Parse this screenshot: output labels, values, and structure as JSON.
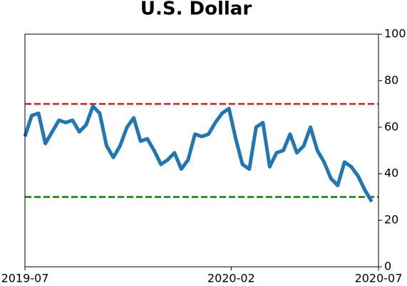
{
  "chart_data": {
    "type": "line",
    "title": "U.S. Dollar",
    "xlim": [
      "2019-07",
      "2020-07"
    ],
    "xticks": [
      "2019-07",
      "2020-02",
      "2020-07"
    ],
    "ylim": [
      0,
      100
    ],
    "yticks": [
      0,
      20,
      40,
      60,
      80,
      100
    ],
    "series": [
      {
        "color": "#1f77b4",
        "values": [
          56,
          65,
          66,
          53,
          58,
          63,
          62,
          63,
          58,
          61,
          69,
          66,
          52,
          47,
          52,
          60,
          64,
          54,
          55,
          50,
          44,
          46,
          49,
          42,
          46,
          57,
          56,
          57,
          62,
          66,
          68,
          55,
          44,
          42,
          60,
          62,
          43,
          49,
          50,
          57,
          49,
          52,
          60,
          50,
          45,
          38,
          35,
          45,
          43,
          39,
          33,
          28,
          null
        ]
      }
    ],
    "hlines": [
      {
        "value": 70,
        "color": "#e41a1c"
      },
      {
        "value": 30,
        "color": "#008000"
      }
    ]
  }
}
